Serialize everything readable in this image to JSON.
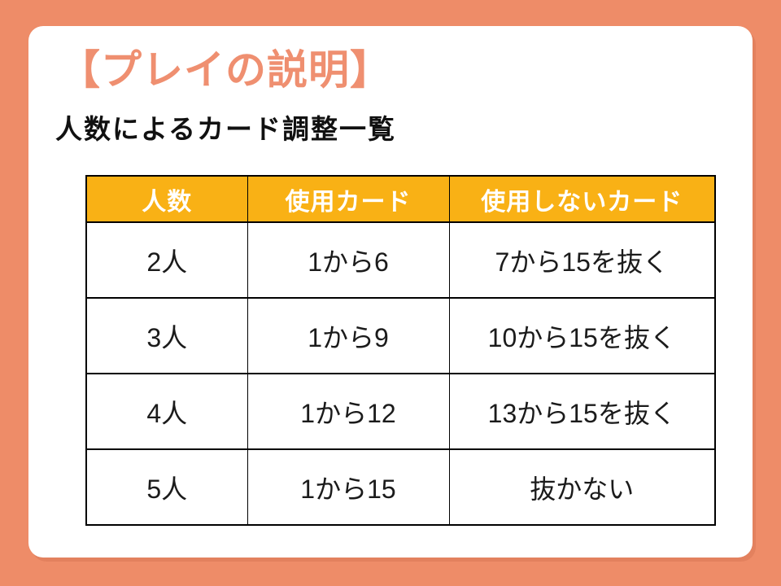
{
  "slide": {
    "title": "【プレイの説明】",
    "subtitle": "人数によるカード調整一覧"
  },
  "table": {
    "headers": [
      "人数",
      "使用カード",
      "使用しないカード"
    ],
    "rows": [
      [
        "2人",
        "1から6",
        "7から15を抜く"
      ],
      [
        "3人",
        "1から9",
        "10から15を抜く"
      ],
      [
        "4人",
        "1から12",
        "13から15を抜く"
      ],
      [
        "5人",
        "1から15",
        "抜かない"
      ]
    ]
  },
  "colors": {
    "background": "#EE8C68",
    "card": "#FFFFFF",
    "title": "#EF8F70",
    "table_header_bg": "#F9B115",
    "table_header_text": "#FFFFFF",
    "table_border": "#000000",
    "body_text": "#1B1B1B"
  }
}
